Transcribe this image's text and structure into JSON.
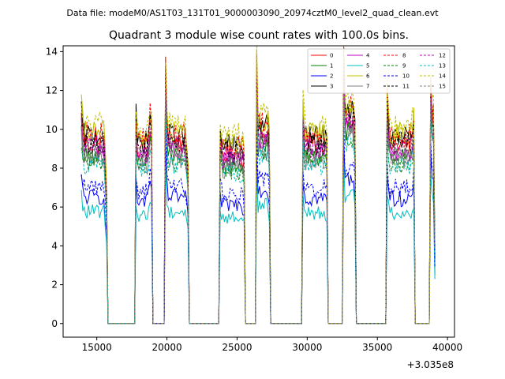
{
  "chart_data": {
    "type": "line",
    "suptitle": "Data file: modeM0/AS1T03_131T01_9000003090_20974cztM0_level2_quad_clean.evt",
    "title": "Quadrant 3 module wise count rates with 100.0s bins.",
    "xlabel": "",
    "ylabel": "",
    "x_offset_label": "+3.035e8",
    "xlim": [
      12600,
      40500
    ],
    "ylim": [
      -0.7,
      14.3
    ],
    "x_ticks": [
      15000,
      20000,
      25000,
      30000,
      35000,
      40000
    ],
    "x_tick_labels": [
      "15000",
      "20000",
      "25000",
      "30000",
      "35000",
      "40000"
    ],
    "y_ticks": [
      0,
      2,
      4,
      6,
      8,
      10,
      12,
      14
    ],
    "y_tick_labels": [
      "0",
      "2",
      "4",
      "6",
      "8",
      "10",
      "12",
      "14"
    ],
    "legend_position": "top-right",
    "segments": [
      {
        "start": 13900,
        "end": 15700,
        "mean": 9.3,
        "peak": 10.6,
        "tail": 6.5
      },
      {
        "start": 17800,
        "end": 18700,
        "mean": 9.0,
        "peak": 10.3,
        "tail": 9.5
      },
      {
        "start": 18800,
        "end": 18900,
        "mean": 10.1,
        "peak": 10.3,
        "tail": 10.0
      },
      {
        "start": 19900,
        "end": 21500,
        "mean": 9.3,
        "peak": 12.7,
        "tail": 7.5
      },
      {
        "start": 23800,
        "end": 25500,
        "mean": 8.8,
        "peak": 9.5,
        "tail": 8.3
      },
      {
        "start": 26400,
        "end": 27300,
        "mean": 9.8,
        "peak": 12.7,
        "tail": 9.0
      },
      {
        "start": 29700,
        "end": 31400,
        "mean": 9.2,
        "peak": 10.5,
        "tail": 9.0
      },
      {
        "start": 32600,
        "end": 33400,
        "mean": 10.6,
        "peak": 13.5,
        "tail": 9.6
      },
      {
        "start": 35700,
        "end": 37600,
        "mean": 9.2,
        "peak": 11.2,
        "tail": 10.0
      },
      {
        "start": 38800,
        "end": 39100,
        "mean": 10.5,
        "peak": 12.0,
        "tail": 4.0
      }
    ],
    "series": [
      {
        "name": "0",
        "color": "#ff0000",
        "dash": "solid",
        "scale": 1.0
      },
      {
        "name": "1",
        "color": "#008000",
        "dash": "solid",
        "scale": 0.93
      },
      {
        "name": "2",
        "color": "#0000ff",
        "dash": "solid",
        "scale": 0.7
      },
      {
        "name": "3",
        "color": "#000000",
        "dash": "solid",
        "scale": 1.04
      },
      {
        "name": "4",
        "color": "#bf00bf",
        "dash": "solid",
        "scale": 0.96
      },
      {
        "name": "5",
        "color": "#00bfbf",
        "dash": "solid",
        "scale": 0.62
      },
      {
        "name": "6",
        "color": "#bfbf00",
        "dash": "solid",
        "scale": 1.06
      },
      {
        "name": "7",
        "color": "#808080",
        "dash": "solid",
        "scale": 0.91
      },
      {
        "name": "8",
        "color": "#ff0000",
        "dash": "dashed",
        "scale": 1.05
      },
      {
        "name": "9",
        "color": "#008000",
        "dash": "dashed",
        "scale": 0.9
      },
      {
        "name": "10",
        "color": "#0000ff",
        "dash": "dashed",
        "scale": 0.76
      },
      {
        "name": "11",
        "color": "#000000",
        "dash": "dashed",
        "scale": 1.0
      },
      {
        "name": "12",
        "color": "#bf00bf",
        "dash": "dashed",
        "scale": 0.98
      },
      {
        "name": "13",
        "color": "#00bfbf",
        "dash": "dashed",
        "scale": 0.88
      },
      {
        "name": "14",
        "color": "#bfbf00",
        "dash": "dashed",
        "scale": 1.1
      },
      {
        "name": "15",
        "color": "#808080",
        "dash": "dashed",
        "scale": 0.95
      }
    ]
  }
}
